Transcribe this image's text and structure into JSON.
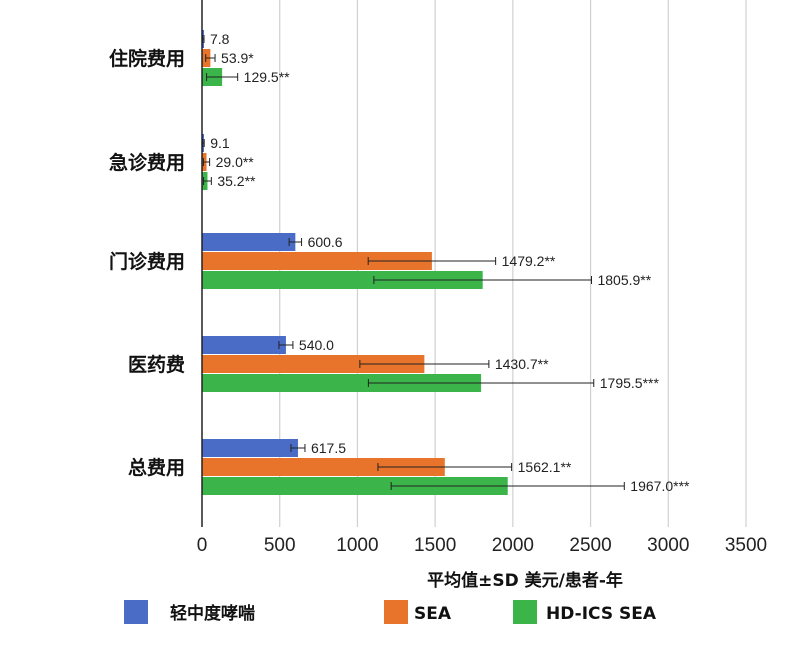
{
  "chart_data": {
    "type": "bar",
    "orientation": "horizontal",
    "categories": [
      "住院费用",
      "急诊费用",
      "门诊费用",
      "医药费",
      "总费用"
    ],
    "series": [
      {
        "name": "轻中度哮喘",
        "color": "#4a6cc7",
        "values": [
          7.8,
          9.1,
          600.6,
          540.0,
          617.5
        ],
        "errors": [
          5,
          5,
          40,
          45,
          45
        ],
        "labels": [
          "7.8",
          "9.1",
          "600.6",
          "540.0",
          "617.5"
        ]
      },
      {
        "name": "SEA",
        "color": "#e8742b",
        "values": [
          53.9,
          29.0,
          1479.2,
          1430.7,
          1562.1
        ],
        "errors": [
          30,
          20,
          410,
          415,
          430
        ],
        "labels": [
          "53.9*",
          "29.0**",
          "1479.2**",
          "1430.7**",
          "1562.1**"
        ]
      },
      {
        "name": "HD-ICS SEA",
        "color": "#3bb54a",
        "values": [
          129.5,
          35.2,
          1805.9,
          1795.5,
          1967.0
        ],
        "errors": [
          100,
          25,
          700,
          725,
          750
        ],
        "labels": [
          "129.5**",
          "35.2**",
          "1805.9**",
          "1795.5***",
          "1967.0***"
        ]
      }
    ],
    "xlabel": "平均值±SD 美元/患者-年",
    "xlim": [
      0,
      3500
    ],
    "xticks": [
      0,
      500,
      1000,
      1500,
      2000,
      2500,
      3000,
      3500
    ],
    "xtick_labels": [
      "0",
      "500",
      "1000",
      "1500",
      "2000",
      "2500",
      "3000",
      "3500"
    ],
    "grid": "vertical",
    "legend_position": "bottom"
  }
}
